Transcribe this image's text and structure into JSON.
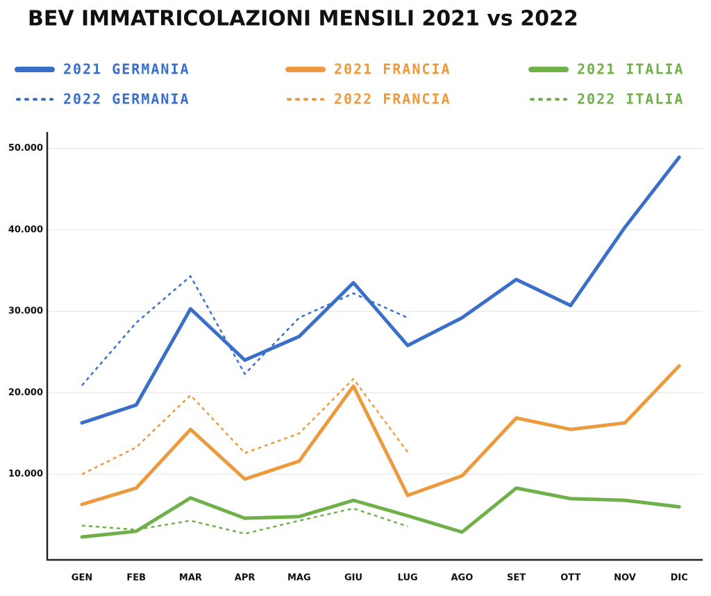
{
  "chart_data": {
    "type": "line",
    "title": "BEV IMMATRICOLAZIONI MENSILI 2021 vs 2022",
    "categories": [
      "GEN",
      "FEB",
      "MAR",
      "APR",
      "MAG",
      "GIU",
      "LUG",
      "AGO",
      "SET",
      "OTT",
      "NOV",
      "DIC"
    ],
    "series": [
      {
        "name": "2021 GERMANIA",
        "color": "#3a6fc9",
        "style": "solid",
        "values": [
          16300,
          18500,
          30300,
          24000,
          26900,
          33500,
          25800,
          29200,
          33900,
          30700,
          40300,
          48900
        ]
      },
      {
        "name": "2021 FRANCIA",
        "color": "#ec9a3d",
        "style": "solid",
        "values": [
          6300,
          8300,
          15500,
          9400,
          11600,
          20800,
          7400,
          9800,
          16900,
          15500,
          16300,
          23300
        ]
      },
      {
        "name": "2021 ITALIA",
        "color": "#6fb04a",
        "style": "solid",
        "values": [
          2300,
          3000,
          7100,
          4600,
          4800,
          6800,
          4900,
          2900,
          8300,
          7000,
          6800,
          6000
        ]
      },
      {
        "name": "2022 GERMANIA",
        "color": "#3a6fc9",
        "style": "dotted",
        "values": [
          20900,
          28600,
          34300,
          22300,
          29200,
          32200,
          29200,
          null,
          null,
          null,
          null,
          null
        ]
      },
      {
        "name": "2022 FRANCIA",
        "color": "#ec9a3d",
        "style": "dotted",
        "values": [
          10000,
          13300,
          19700,
          12600,
          15000,
          21700,
          12700,
          null,
          null,
          null,
          null,
          null
        ]
      },
      {
        "name": "2022 ITALIA",
        "color": "#6fb04a",
        "style": "dotted",
        "values": [
          3700,
          3200,
          4300,
          2700,
          4300,
          5800,
          3600,
          null,
          null,
          null,
          null,
          null
        ]
      }
    ],
    "ylim": [
      0,
      52000
    ],
    "yticks": [
      {
        "value": 10000,
        "label": "10.000"
      },
      {
        "value": 20000,
        "label": "20.000"
      },
      {
        "value": 30000,
        "label": "30.000"
      },
      {
        "value": 40000,
        "label": "40.000"
      },
      {
        "value": 50000,
        "label": "50.000"
      }
    ],
    "grid": true
  }
}
